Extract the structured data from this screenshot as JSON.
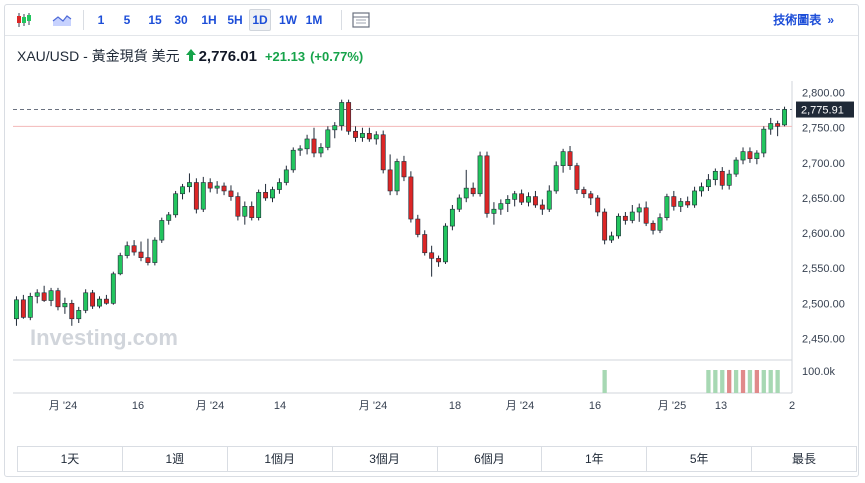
{
  "toolbar": {
    "icons": [
      "candlestick-icon",
      "area-chart-icon",
      "grid-icon"
    ],
    "intervals": [
      {
        "label": "1",
        "active": false
      },
      {
        "label": "5",
        "active": false
      },
      {
        "label": "15",
        "active": false
      },
      {
        "label": "30",
        "active": false
      },
      {
        "label": "1H",
        "active": false
      },
      {
        "label": "5H",
        "active": false
      },
      {
        "label": "1D",
        "active": true
      },
      {
        "label": "1W",
        "active": false
      },
      {
        "label": "1M",
        "active": false
      }
    ],
    "technical_link": "技術圖表",
    "technical_chevron": "»"
  },
  "quote": {
    "symbol": "XAU/USD - 黃金現貨 美元",
    "price": "2,776.01",
    "change": "+21.13",
    "change_pct": "(+0.77%)",
    "direction": "up",
    "color_up": "#16a34a"
  },
  "chart_data": {
    "type": "candlestick",
    "title": "",
    "xlabel": "",
    "ylabel": "",
    "ylim": [
      2425,
      2808
    ],
    "y_ticks": [
      "2,800.00",
      "2,750.00",
      "2,700.00",
      "2,650.00",
      "2,600.00",
      "2,550.00",
      "2,500.00",
      "2,450.00"
    ],
    "y_tick_values": [
      2800,
      2750,
      2700,
      2650,
      2600,
      2550,
      2500,
      2450
    ],
    "x_ticks": [
      "月 '24",
      "16",
      "月 '24",
      "14",
      "月 '24",
      "18",
      "月 '24",
      "16",
      "月 '25",
      "13",
      "2"
    ],
    "last_price_label": "2,775.91",
    "reference_level": 2752,
    "dashed_level": 2775.91,
    "volume_label": "100.0k",
    "watermark": "Investing.com",
    "colors": {
      "up": "#22c55e",
      "down": "#dc2626",
      "wick": "#1f2937",
      "volume_up": "#a7d8b3",
      "volume_down": "#e08a8a"
    },
    "candles": [
      {
        "o": 2478,
        "h": 2510,
        "l": 2468,
        "c": 2505
      },
      {
        "o": 2505,
        "h": 2512,
        "l": 2478,
        "c": 2480
      },
      {
        "o": 2480,
        "h": 2515,
        "l": 2476,
        "c": 2510
      },
      {
        "o": 2510,
        "h": 2520,
        "l": 2500,
        "c": 2515
      },
      {
        "o": 2515,
        "h": 2525,
        "l": 2502,
        "c": 2504
      },
      {
        "o": 2504,
        "h": 2522,
        "l": 2496,
        "c": 2518
      },
      {
        "o": 2518,
        "h": 2522,
        "l": 2490,
        "c": 2495
      },
      {
        "o": 2495,
        "h": 2508,
        "l": 2485,
        "c": 2500
      },
      {
        "o": 2500,
        "h": 2505,
        "l": 2468,
        "c": 2478
      },
      {
        "o": 2478,
        "h": 2495,
        "l": 2472,
        "c": 2490
      },
      {
        "o": 2490,
        "h": 2520,
        "l": 2486,
        "c": 2515
      },
      {
        "o": 2515,
        "h": 2519,
        "l": 2492,
        "c": 2496
      },
      {
        "o": 2496,
        "h": 2510,
        "l": 2493,
        "c": 2506
      },
      {
        "o": 2506,
        "h": 2512,
        "l": 2498,
        "c": 2500
      },
      {
        "o": 2500,
        "h": 2545,
        "l": 2498,
        "c": 2542
      },
      {
        "o": 2542,
        "h": 2572,
        "l": 2540,
        "c": 2568
      },
      {
        "o": 2568,
        "h": 2588,
        "l": 2564,
        "c": 2582
      },
      {
        "o": 2582,
        "h": 2590,
        "l": 2568,
        "c": 2573
      },
      {
        "o": 2573,
        "h": 2588,
        "l": 2560,
        "c": 2565
      },
      {
        "o": 2565,
        "h": 2592,
        "l": 2554,
        "c": 2558
      },
      {
        "o": 2558,
        "h": 2594,
        "l": 2554,
        "c": 2590
      },
      {
        "o": 2590,
        "h": 2622,
        "l": 2586,
        "c": 2618
      },
      {
        "o": 2618,
        "h": 2630,
        "l": 2612,
        "c": 2626
      },
      {
        "o": 2626,
        "h": 2660,
        "l": 2622,
        "c": 2656
      },
      {
        "o": 2656,
        "h": 2670,
        "l": 2648,
        "c": 2666
      },
      {
        "o": 2666,
        "h": 2685,
        "l": 2658,
        "c": 2672
      },
      {
        "o": 2672,
        "h": 2678,
        "l": 2628,
        "c": 2634
      },
      {
        "o": 2634,
        "h": 2680,
        "l": 2630,
        "c": 2672
      },
      {
        "o": 2672,
        "h": 2678,
        "l": 2658,
        "c": 2664
      },
      {
        "o": 2664,
        "h": 2674,
        "l": 2656,
        "c": 2667
      },
      {
        "o": 2667,
        "h": 2672,
        "l": 2654,
        "c": 2660
      },
      {
        "o": 2660,
        "h": 2668,
        "l": 2646,
        "c": 2652
      },
      {
        "o": 2652,
        "h": 2658,
        "l": 2618,
        "c": 2624
      },
      {
        "o": 2624,
        "h": 2645,
        "l": 2612,
        "c": 2638
      },
      {
        "o": 2638,
        "h": 2645,
        "l": 2618,
        "c": 2622
      },
      {
        "o": 2622,
        "h": 2662,
        "l": 2618,
        "c": 2658
      },
      {
        "o": 2658,
        "h": 2670,
        "l": 2646,
        "c": 2650
      },
      {
        "o": 2650,
        "h": 2666,
        "l": 2644,
        "c": 2662
      },
      {
        "o": 2662,
        "h": 2678,
        "l": 2656,
        "c": 2672
      },
      {
        "o": 2672,
        "h": 2696,
        "l": 2668,
        "c": 2690
      },
      {
        "o": 2690,
        "h": 2722,
        "l": 2686,
        "c": 2718
      },
      {
        "o": 2718,
        "h": 2725,
        "l": 2710,
        "c": 2720
      },
      {
        "o": 2720,
        "h": 2740,
        "l": 2712,
        "c": 2734
      },
      {
        "o": 2734,
        "h": 2750,
        "l": 2708,
        "c": 2714
      },
      {
        "o": 2714,
        "h": 2728,
        "l": 2708,
        "c": 2722
      },
      {
        "o": 2722,
        "h": 2752,
        "l": 2718,
        "c": 2747
      },
      {
        "o": 2747,
        "h": 2758,
        "l": 2735,
        "c": 2753
      },
      {
        "o": 2753,
        "h": 2790,
        "l": 2746,
        "c": 2786
      },
      {
        "o": 2786,
        "h": 2790,
        "l": 2740,
        "c": 2745
      },
      {
        "o": 2745,
        "h": 2752,
        "l": 2730,
        "c": 2736
      },
      {
        "o": 2736,
        "h": 2750,
        "l": 2730,
        "c": 2742
      },
      {
        "o": 2742,
        "h": 2750,
        "l": 2730,
        "c": 2734
      },
      {
        "o": 2734,
        "h": 2745,
        "l": 2726,
        "c": 2740
      },
      {
        "o": 2740,
        "h": 2746,
        "l": 2685,
        "c": 2690
      },
      {
        "o": 2690,
        "h": 2712,
        "l": 2654,
        "c": 2660
      },
      {
        "o": 2660,
        "h": 2706,
        "l": 2654,
        "c": 2702
      },
      {
        "o": 2702,
        "h": 2710,
        "l": 2674,
        "c": 2680
      },
      {
        "o": 2680,
        "h": 2688,
        "l": 2615,
        "c": 2620
      },
      {
        "o": 2620,
        "h": 2626,
        "l": 2594,
        "c": 2598
      },
      {
        "o": 2598,
        "h": 2604,
        "l": 2568,
        "c": 2572
      },
      {
        "o": 2572,
        "h": 2582,
        "l": 2538,
        "c": 2564
      },
      {
        "o": 2564,
        "h": 2568,
        "l": 2552,
        "c": 2559
      },
      {
        "o": 2559,
        "h": 2614,
        "l": 2556,
        "c": 2610
      },
      {
        "o": 2610,
        "h": 2640,
        "l": 2604,
        "c": 2634
      },
      {
        "o": 2634,
        "h": 2655,
        "l": 2630,
        "c": 2650
      },
      {
        "o": 2650,
        "h": 2690,
        "l": 2644,
        "c": 2664
      },
      {
        "o": 2664,
        "h": 2672,
        "l": 2652,
        "c": 2656
      },
      {
        "o": 2656,
        "h": 2716,
        "l": 2652,
        "c": 2710
      },
      {
        "o": 2710,
        "h": 2716,
        "l": 2622,
        "c": 2628
      },
      {
        "o": 2628,
        "h": 2644,
        "l": 2612,
        "c": 2634
      },
      {
        "o": 2634,
        "h": 2648,
        "l": 2626,
        "c": 2642
      },
      {
        "o": 2642,
        "h": 2654,
        "l": 2630,
        "c": 2648
      },
      {
        "o": 2648,
        "h": 2660,
        "l": 2638,
        "c": 2656
      },
      {
        "o": 2656,
        "h": 2662,
        "l": 2640,
        "c": 2644
      },
      {
        "o": 2644,
        "h": 2658,
        "l": 2638,
        "c": 2652
      },
      {
        "o": 2652,
        "h": 2660,
        "l": 2636,
        "c": 2640
      },
      {
        "o": 2640,
        "h": 2648,
        "l": 2626,
        "c": 2634
      },
      {
        "o": 2634,
        "h": 2668,
        "l": 2630,
        "c": 2660
      },
      {
        "o": 2660,
        "h": 2702,
        "l": 2656,
        "c": 2696
      },
      {
        "o": 2696,
        "h": 2720,
        "l": 2686,
        "c": 2716
      },
      {
        "o": 2716,
        "h": 2724,
        "l": 2690,
        "c": 2696
      },
      {
        "o": 2696,
        "h": 2700,
        "l": 2656,
        "c": 2662
      },
      {
        "o": 2662,
        "h": 2666,
        "l": 2650,
        "c": 2656
      },
      {
        "o": 2656,
        "h": 2660,
        "l": 2640,
        "c": 2650
      },
      {
        "o": 2650,
        "h": 2654,
        "l": 2624,
        "c": 2630
      },
      {
        "o": 2630,
        "h": 2635,
        "l": 2584,
        "c": 2590
      },
      {
        "o": 2590,
        "h": 2602,
        "l": 2586,
        "c": 2596
      },
      {
        "o": 2596,
        "h": 2628,
        "l": 2592,
        "c": 2624
      },
      {
        "o": 2624,
        "h": 2630,
        "l": 2612,
        "c": 2618
      },
      {
        "o": 2618,
        "h": 2640,
        "l": 2614,
        "c": 2630
      },
      {
        "o": 2630,
        "h": 2642,
        "l": 2616,
        "c": 2636
      },
      {
        "o": 2636,
        "h": 2645,
        "l": 2610,
        "c": 2614
      },
      {
        "o": 2614,
        "h": 2618,
        "l": 2598,
        "c": 2604
      },
      {
        "o": 2604,
        "h": 2628,
        "l": 2600,
        "c": 2622
      },
      {
        "o": 2622,
        "h": 2656,
        "l": 2618,
        "c": 2652
      },
      {
        "o": 2652,
        "h": 2660,
        "l": 2632,
        "c": 2638
      },
      {
        "o": 2638,
        "h": 2650,
        "l": 2630,
        "c": 2645
      },
      {
        "o": 2645,
        "h": 2652,
        "l": 2636,
        "c": 2640
      },
      {
        "o": 2640,
        "h": 2666,
        "l": 2636,
        "c": 2660
      },
      {
        "o": 2660,
        "h": 2672,
        "l": 2652,
        "c": 2666
      },
      {
        "o": 2666,
        "h": 2684,
        "l": 2660,
        "c": 2676
      },
      {
        "o": 2676,
        "h": 2692,
        "l": 2668,
        "c": 2688
      },
      {
        "o": 2688,
        "h": 2694,
        "l": 2662,
        "c": 2668
      },
      {
        "o": 2668,
        "h": 2690,
        "l": 2662,
        "c": 2684
      },
      {
        "o": 2684,
        "h": 2708,
        "l": 2680,
        "c": 2704
      },
      {
        "o": 2704,
        "h": 2722,
        "l": 2698,
        "c": 2716
      },
      {
        "o": 2716,
        "h": 2722,
        "l": 2700,
        "c": 2706
      },
      {
        "o": 2706,
        "h": 2718,
        "l": 2698,
        "c": 2714
      },
      {
        "o": 2714,
        "h": 2752,
        "l": 2708,
        "c": 2748
      },
      {
        "o": 2748,
        "h": 2764,
        "l": 2740,
        "c": 2756
      },
      {
        "o": 2756,
        "h": 2760,
        "l": 2738,
        "c": 2752
      },
      {
        "o": 2754,
        "h": 2780,
        "l": 2752,
        "c": 2776
      }
    ],
    "volume": [
      {
        "index": 85,
        "value": 100000,
        "dir": "up"
      },
      {
        "index": 100,
        "value": 100000,
        "dir": "up"
      },
      {
        "index": 101,
        "value": 100000,
        "dir": "up"
      },
      {
        "index": 102,
        "value": 100000,
        "dir": "up"
      },
      {
        "index": 103,
        "value": 100000,
        "dir": "down"
      },
      {
        "index": 104,
        "value": 100000,
        "dir": "up"
      },
      {
        "index": 105,
        "value": 100000,
        "dir": "down"
      },
      {
        "index": 106,
        "value": 100000,
        "dir": "up"
      },
      {
        "index": 107,
        "value": 100000,
        "dir": "down"
      },
      {
        "index": 108,
        "value": 100000,
        "dir": "up"
      },
      {
        "index": 109,
        "value": 100000,
        "dir": "up"
      },
      {
        "index": 110,
        "value": 100000,
        "dir": "up"
      }
    ]
  },
  "ranges": [
    "1天",
    "1週",
    "1個月",
    "3個月",
    "6個月",
    "1年",
    "5年",
    "最長"
  ]
}
